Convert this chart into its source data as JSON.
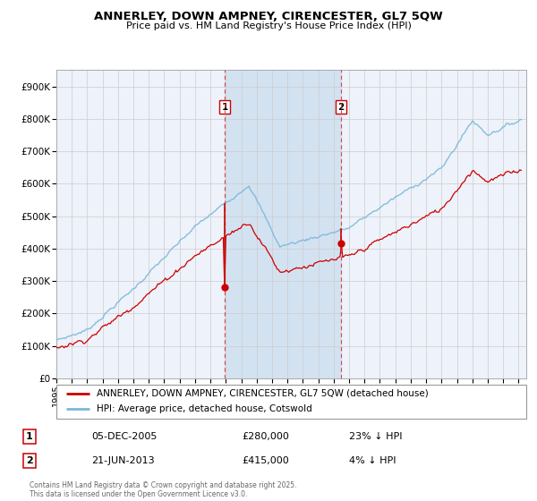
{
  "title": "ANNERLEY, DOWN AMPNEY, CIRENCESTER, GL7 5QW",
  "subtitle": "Price paid vs. HM Land Registry's House Price Index (HPI)",
  "legend_line1": "ANNERLEY, DOWN AMPNEY, CIRENCESTER, GL7 5QW (detached house)",
  "legend_line2": "HPI: Average price, detached house, Cotswold",
  "annotation1_year": 2005.92,
  "annotation1_value": 280000,
  "annotation2_year": 2013.47,
  "annotation2_value": 415000,
  "hpi_color": "#7ab8d9",
  "price_color": "#cc0000",
  "background_color": "#ffffff",
  "plot_bg_color": "#eef2fa",
  "shade_color": "#cfe0f0",
  "grid_color": "#cccccc",
  "ylim_min": 0,
  "ylim_max": 950000,
  "yticks": [
    0,
    100000,
    200000,
    300000,
    400000,
    500000,
    600000,
    700000,
    800000,
    900000
  ],
  "ytick_labels": [
    "£0",
    "£100K",
    "£200K",
    "£300K",
    "£400K",
    "£500K",
    "£600K",
    "£700K",
    "£800K",
    "£900K"
  ],
  "xlim_start": 1995.0,
  "xlim_end": 2025.5,
  "xtick_years": [
    1995,
    1996,
    1997,
    1998,
    1999,
    2000,
    2001,
    2002,
    2003,
    2004,
    2005,
    2006,
    2007,
    2008,
    2009,
    2010,
    2011,
    2012,
    2013,
    2014,
    2015,
    2016,
    2017,
    2018,
    2019,
    2020,
    2021,
    2022,
    2023,
    2024,
    2025
  ],
  "footer_text": "Contains HM Land Registry data © Crown copyright and database right 2025.\nThis data is licensed under the Open Government Licence v3.0.",
  "table_row1": [
    "1",
    "05-DEC-2005",
    "£280,000",
    "23% ↓ HPI"
  ],
  "table_row2": [
    "2",
    "21-JUN-2013",
    "£415,000",
    "4% ↓ HPI"
  ]
}
